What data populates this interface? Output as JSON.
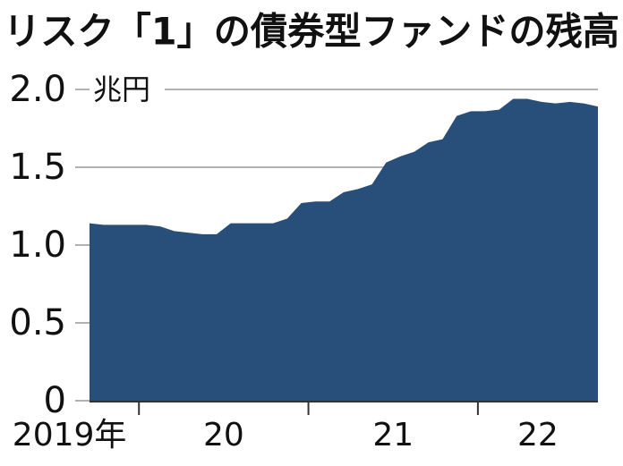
{
  "chart_data": {
    "type": "area",
    "title": "リスク「1」の債券型ファンドの残高",
    "unit_label": "兆円",
    "x_labels": [
      "2019年",
      "20",
      "21",
      "22"
    ],
    "values": [
      1.14,
      1.13,
      1.13,
      1.13,
      1.13,
      1.12,
      1.09,
      1.08,
      1.07,
      1.07,
      1.14,
      1.14,
      1.14,
      1.14,
      1.17,
      1.27,
      1.28,
      1.28,
      1.34,
      1.36,
      1.39,
      1.53,
      1.57,
      1.6,
      1.66,
      1.68,
      1.83,
      1.86,
      1.86,
      1.87,
      1.94,
      1.94,
      1.92,
      1.91,
      1.92,
      1.91,
      1.89
    ],
    "color": "#284e7a",
    "ylim": [
      0,
      2
    ],
    "yticks": [
      0,
      {
        "value": 0.5,
        "label": "0.5"
      },
      {
        "value": 1,
        "label": "1.0"
      },
      {
        "value": 1.5,
        "label": "1.5"
      },
      {
        "value": 2,
        "label": "2.0"
      }
    ],
    "grid": true
  }
}
